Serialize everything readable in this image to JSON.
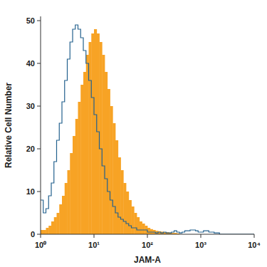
{
  "chart_data": {
    "type": "histogram",
    "x_label": "JAM-A",
    "y_label": "Relative Cell Number",
    "log": "x",
    "xlim": [
      1,
      10000
    ],
    "xticks": [
      {
        "value": 1,
        "label": "10⁰"
      },
      {
        "value": 10,
        "label": "10¹"
      },
      {
        "value": 100,
        "label": "10²"
      },
      {
        "value": 1000,
        "label": "10³"
      },
      {
        "value": 10000,
        "label": "10⁴"
      }
    ],
    "ylim": [
      0,
      51
    ],
    "yticks": [
      0,
      10,
      20,
      30,
      40,
      50
    ],
    "grid": false,
    "bins": [
      1,
      1.122,
      1.259,
      1.413,
      1.585,
      1.778,
      1.995,
      2.239,
      2.512,
      2.818,
      3.162,
      3.548,
      3.981,
      4.467,
      5.012,
      5.623,
      6.31,
      7.079,
      7.943,
      8.913,
      10,
      11.22,
      12.59,
      14.13,
      15.85,
      17.78,
      19.95,
      22.39,
      25.12,
      28.18,
      31.62,
      35.48,
      39.81,
      44.67,
      50.12,
      56.23,
      63.1,
      70.79,
      79.43,
      89.13,
      100,
      112.2,
      125.9,
      141.3,
      158.5,
      177.8,
      199.5,
      223.9,
      251.2,
      281.8,
      316.2,
      354.8,
      398.1,
      446.7,
      501.2,
      562.3,
      631,
      707.9,
      794.3,
      891.3,
      1000,
      1122,
      1259,
      1413,
      1585,
      1778,
      1995,
      2239,
      2512,
      2818,
      3162,
      3548,
      3981,
      4467,
      5012,
      5623,
      6310,
      7079,
      7943,
      8913,
      10000
    ],
    "series": [
      {
        "type": "bar",
        "color": "#f7a325",
        "values": [
          1,
          1,
          1.5,
          2,
          3,
          4,
          5,
          7,
          9,
          12,
          15,
          19,
          23,
          27,
          31,
          35,
          38,
          42,
          45,
          47,
          48,
          47,
          45,
          42,
          38,
          34,
          30,
          26,
          22,
          18,
          15,
          12,
          10,
          8,
          6.5,
          5,
          4,
          3,
          2.5,
          2,
          1.5,
          1.2,
          1,
          0.8,
          0.7,
          0.6,
          0.5,
          0.5,
          0.4,
          0.3,
          0.3,
          0.2,
          0,
          0,
          0,
          0,
          0,
          0,
          0,
          0,
          0,
          0,
          0,
          0,
          0,
          0,
          0,
          0,
          0,
          0,
          0,
          0,
          0,
          0,
          0,
          0,
          0,
          0,
          0,
          0
        ]
      },
      {
        "type": "step",
        "color": "#23618e",
        "values": [
          8,
          5,
          6,
          9,
          12,
          17,
          22,
          26,
          31,
          36,
          41,
          45,
          48,
          49,
          48,
          46,
          43,
          40,
          36,
          32,
          28,
          24,
          20,
          16,
          13,
          10,
          8,
          6.5,
          5,
          4,
          3.5,
          3,
          2.5,
          2,
          1.5,
          1.5,
          1,
          1,
          1,
          1,
          0.5,
          0.5,
          0.5,
          0.3,
          0.5,
          0.3,
          0.5,
          0.3,
          0.3,
          0.5,
          0.8,
          0.5,
          0.3,
          0.5,
          0.8,
          0.8,
          1,
          1,
          0.8,
          0.5,
          0.5,
          0.8,
          0.8,
          0.5,
          0.5,
          0.3,
          0.3,
          0,
          0,
          0,
          0,
          0,
          0,
          0,
          0,
          0,
          0,
          0,
          0,
          0
        ]
      }
    ]
  }
}
